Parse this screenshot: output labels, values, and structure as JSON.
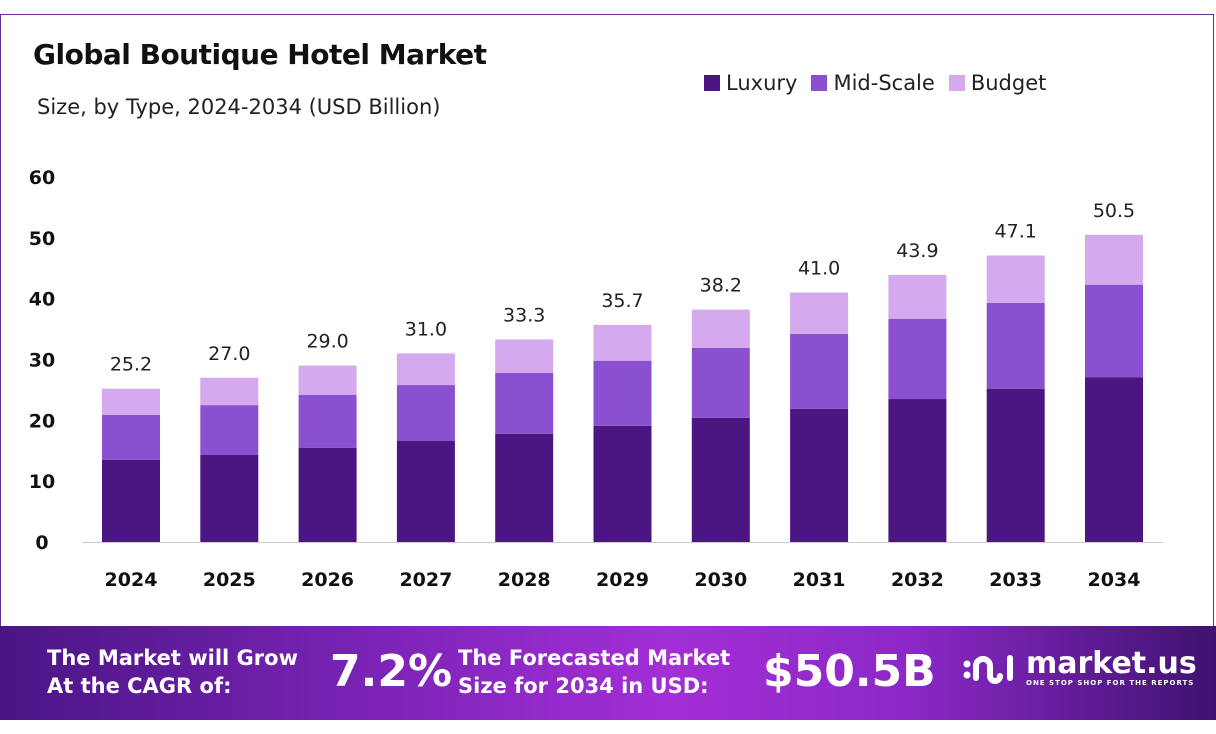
{
  "header": {
    "title": "Global Boutique Hotel Market",
    "subtitle": "Size, by Type, 2024-2034 (USD Billion)"
  },
  "chart_data": {
    "type": "bar",
    "stacked": true,
    "categories": [
      "2024",
      "2025",
      "2026",
      "2027",
      "2028",
      "2029",
      "2030",
      "2031",
      "2032",
      "2033",
      "2034"
    ],
    "series": [
      {
        "name": "Luxury",
        "color": "#4b1682",
        "values": [
          13.5,
          14.3,
          15.5,
          16.6,
          17.8,
          19.1,
          20.4,
          21.9,
          23.5,
          25.2,
          27.1
        ]
      },
      {
        "name": "Mid-Scale",
        "color": "#8b50d0",
        "values": [
          7.4,
          8.2,
          8.7,
          9.2,
          10.0,
          10.7,
          11.5,
          12.3,
          13.2,
          14.1,
          15.2
        ]
      },
      {
        "name": "Budget",
        "color": "#d5a9ed",
        "values": [
          4.3,
          4.5,
          4.8,
          5.2,
          5.5,
          5.9,
          6.3,
          6.8,
          7.2,
          7.8,
          8.2
        ]
      }
    ],
    "totals": [
      "25.2",
      "27.0",
      "29.0",
      "31.0",
      "33.3",
      "35.7",
      "38.2",
      "41.0",
      "43.9",
      "47.1",
      "50.5"
    ],
    "yticks": [
      "0",
      "10",
      "20",
      "30",
      "40",
      "50",
      "60"
    ],
    "ylim": [
      0,
      60
    ],
    "grid": false,
    "legend_position": "top-right"
  },
  "footer": {
    "cagr_label_1": "The Market will Grow",
    "cagr_label_2": "At the CAGR of:",
    "cagr_value": "7.2%",
    "forecast_label_1": "The Forecasted Market",
    "forecast_label_2": "Size for 2034 in USD:",
    "forecast_value": "$50.5B",
    "logo_name": "market.us",
    "logo_tagline": "ONE STOP SHOP FOR THE REPORTS"
  }
}
